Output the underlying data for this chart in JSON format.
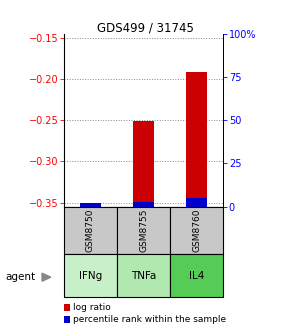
{
  "title": "GDS499 / 31745",
  "samples": [
    "GSM8750",
    "GSM8755",
    "GSM8760"
  ],
  "agents": [
    "IFNg",
    "TNFa",
    "IL4"
  ],
  "log_ratios": [
    -0.352,
    -0.251,
    -0.191
  ],
  "percentile_ranks": [
    2.0,
    2.5,
    5.0
  ],
  "ylim_left": [
    -0.355,
    -0.145
  ],
  "ylim_right": [
    0,
    100
  ],
  "left_ticks": [
    -0.35,
    -0.3,
    -0.25,
    -0.2,
    -0.15
  ],
  "right_ticks": [
    0,
    25,
    50,
    75,
    100
  ],
  "bar_color": "#cc0000",
  "percentile_color": "#0000cc",
  "sample_bg": "#c8c8c8",
  "agent_colors": [
    "#c8f0c8",
    "#b8e8b8",
    "#66cc66"
  ],
  "grid_color": "#888888",
  "legend_marker_red": "#cc0000",
  "legend_marker_blue": "#0000cc",
  "bar_width": 0.4
}
